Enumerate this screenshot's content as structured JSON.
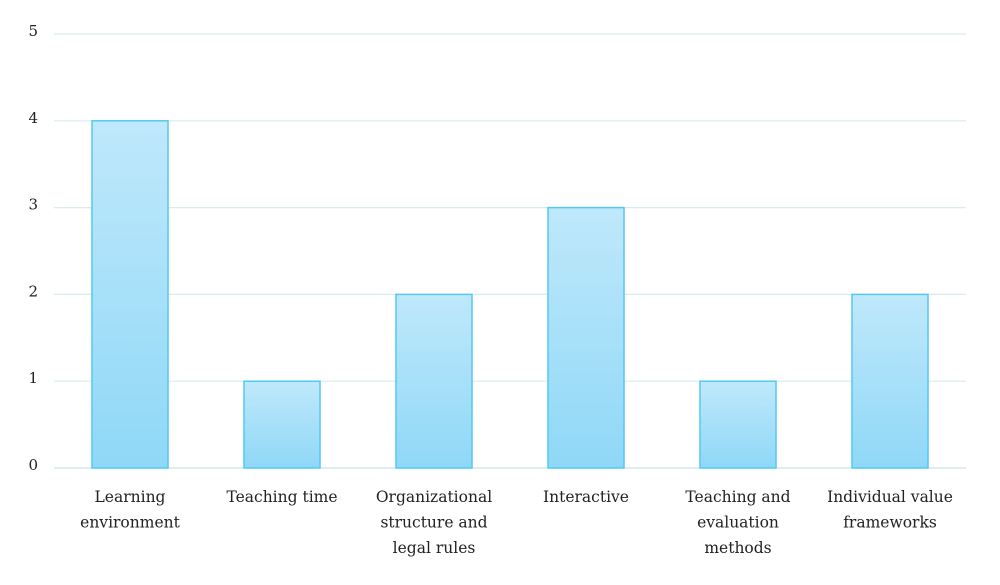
{
  "colors": {
    "bar_top": "#bfe8fb",
    "bar_bottom": "#8fd8f7",
    "bar_stroke": "#54c9f0",
    "grid": "#d6ecef",
    "axis": "#cfe3e6"
  },
  "chart_data": {
    "type": "bar",
    "title": "",
    "xlabel": "",
    "ylabel": "",
    "categories": [
      [
        "Learning",
        "environment"
      ],
      [
        "Teaching time"
      ],
      [
        "Organizational",
        "structure and",
        "legal rules"
      ],
      [
        "Interactive"
      ],
      [
        "Teaching and",
        "evaluation",
        "methods"
      ],
      [
        "Individual value",
        "frameworks"
      ]
    ],
    "values": [
      4,
      1,
      2,
      3,
      1,
      2
    ],
    "ylim": [
      0,
      5
    ],
    "yticks": [
      "0",
      "1",
      "2",
      "3",
      "4",
      "5"
    ],
    "grid": true,
    "legend": "none"
  }
}
